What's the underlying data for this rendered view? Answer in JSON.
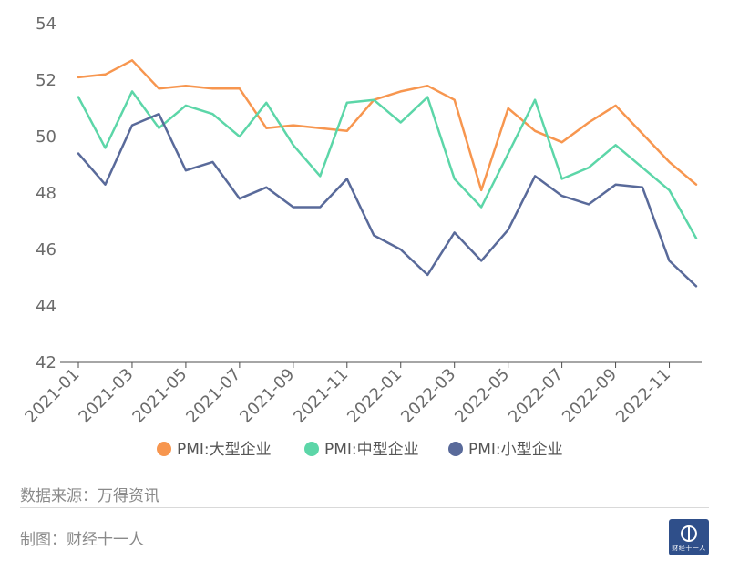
{
  "chart_data": {
    "type": "line",
    "title": "",
    "xlabel": "",
    "ylabel": "",
    "ylim": [
      42,
      54
    ],
    "yticks": [
      42,
      44,
      46,
      48,
      50,
      52,
      54
    ],
    "x": [
      "2021-01",
      "2021-02",
      "2021-03",
      "2021-04",
      "2021-05",
      "2021-06",
      "2021-07",
      "2021-08",
      "2021-09",
      "2021-10",
      "2021-11",
      "2021-12",
      "2022-01",
      "2022-02",
      "2022-03",
      "2022-04",
      "2022-05",
      "2022-06",
      "2022-07",
      "2022-08",
      "2022-09",
      "2022-10",
      "2022-11",
      "2022-12"
    ],
    "xtick_labels": [
      "2021-01",
      "2021-03",
      "2021-05",
      "2021-07",
      "2021-09",
      "2021-11",
      "2022-01",
      "2022-03",
      "2022-05",
      "2022-07",
      "2022-09",
      "2022-11"
    ],
    "grid": false,
    "legend_position": "bottom",
    "series": [
      {
        "name": "PMI:大型企业",
        "color": "#f7964f",
        "values": [
          52.1,
          52.2,
          52.7,
          51.7,
          51.8,
          51.7,
          51.7,
          50.3,
          50.4,
          50.3,
          50.2,
          51.3,
          51.6,
          51.8,
          51.3,
          48.1,
          51.0,
          50.2,
          49.8,
          50.5,
          51.1,
          50.1,
          49.1,
          48.3
        ]
      },
      {
        "name": "PMI:中型企业",
        "color": "#5cd6a8",
        "values": [
          51.4,
          49.6,
          51.6,
          50.3,
          51.1,
          50.8,
          50.0,
          51.2,
          49.7,
          48.6,
          51.2,
          51.3,
          50.5,
          51.4,
          48.5,
          47.5,
          49.4,
          51.3,
          48.5,
          48.9,
          49.7,
          48.9,
          48.1,
          46.4
        ]
      },
      {
        "name": "PMI:小型企业",
        "color": "#596a9a",
        "values": [
          49.4,
          48.3,
          50.4,
          50.8,
          48.8,
          49.1,
          47.8,
          48.2,
          47.5,
          47.5,
          48.5,
          46.5,
          46.0,
          45.1,
          46.6,
          45.6,
          46.7,
          48.6,
          47.9,
          47.6,
          48.3,
          48.2,
          45.6,
          44.7
        ]
      }
    ]
  },
  "footer": {
    "source": "数据来源：万得资讯",
    "credit": "制图：财经十一人",
    "logo_text": "财经十一人"
  }
}
